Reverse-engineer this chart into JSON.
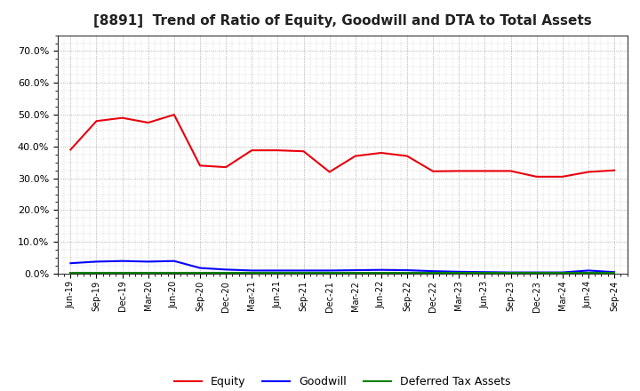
{
  "title": "[8891]  Trend of Ratio of Equity, Goodwill and DTA to Total Assets",
  "x_labels": [
    "Jun-19",
    "Sep-19",
    "Dec-19",
    "Mar-20",
    "Jun-20",
    "Sep-20",
    "Dec-20",
    "Mar-21",
    "Jun-21",
    "Sep-21",
    "Dec-21",
    "Mar-22",
    "Jun-22",
    "Sep-22",
    "Dec-22",
    "Mar-23",
    "Jun-23",
    "Sep-23",
    "Dec-23",
    "Mar-24",
    "Jun-24",
    "Sep-24"
  ],
  "equity": [
    0.39,
    0.48,
    0.49,
    0.475,
    0.5,
    0.34,
    0.335,
    0.388,
    0.388,
    0.385,
    0.32,
    0.37,
    0.38,
    0.37,
    0.322,
    0.323,
    0.323,
    0.323,
    0.305,
    0.305,
    0.32,
    0.325
  ],
  "goodwill": [
    0.033,
    0.038,
    0.04,
    0.038,
    0.04,
    0.018,
    0.013,
    0.01,
    0.01,
    0.01,
    0.01,
    0.011,
    0.012,
    0.011,
    0.008,
    0.006,
    0.005,
    0.004,
    0.004,
    0.004,
    0.01,
    0.005
  ],
  "dta": [
    0.0015,
    0.0015,
    0.0015,
    0.0015,
    0.0015,
    0.0015,
    0.0015,
    0.0015,
    0.0015,
    0.0015,
    0.0015,
    0.0015,
    0.0015,
    0.0015,
    0.0015,
    0.0015,
    0.0015,
    0.0015,
    0.0015,
    0.0015,
    0.0015,
    0.0015
  ],
  "equity_color": "#e8000d",
  "goodwill_color": "#0000ff",
  "dta_color": "#008000",
  "ylim": [
    0.0,
    0.75
  ],
  "yticks": [
    0.0,
    0.1,
    0.2,
    0.3,
    0.4,
    0.5,
    0.6,
    0.7
  ],
  "background_color": "#ffffff",
  "plot_bg_color": "#ffffff",
  "grid_color": "#888888",
  "title_fontsize": 11,
  "legend_labels": [
    "Equity",
    "Goodwill",
    "Deferred Tax Assets"
  ]
}
